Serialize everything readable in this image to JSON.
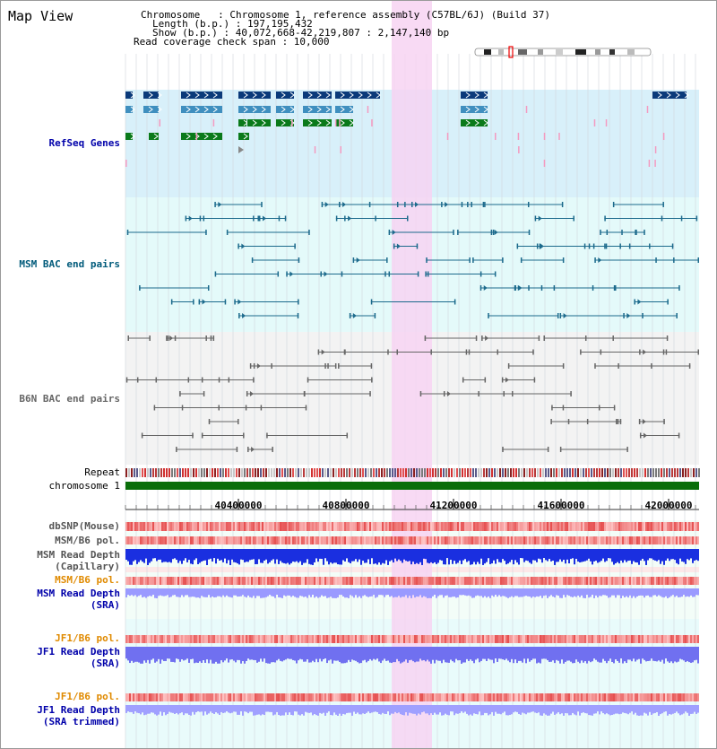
{
  "view": {
    "title": "Map View",
    "info": {
      "chromosome": "Chromosome   : Chromosome 1, reference assembly (C57BL/6J) (Build 37)",
      "length": "Length (b.p.) : 197,195,432",
      "show": "Show (b.p.) : 40,072,668-42,219,807 : 2,147,140 bp",
      "span": "Read coverage check span : 10,000"
    }
  },
  "tracks": {
    "refseq": "RefSeq Genes",
    "msm_bac": "MSM BAC end pairs",
    "b6n_bac": "B6N BAC end pairs",
    "repeat": "Repeat",
    "chromosome": "chromosome 1",
    "dbsnp": "dbSNP(Mouse)",
    "msm_b6_pol": "MSM/B6 pol.",
    "msm_depth_cap": "MSM Read Depth",
    "msm_depth_cap_sub": "(Capillary)",
    "msm_b6_pol2": "MSM/B6 pol.",
    "msm_depth_sra": "MSM Read Depth",
    "msm_depth_sra_sub": "(SRA)",
    "jf1_b6_pol": "JF1/B6 pol.",
    "jf1_depth_sra": "JF1 Read Depth",
    "jf1_depth_sra_sub": "(SRA)",
    "jf1_b6_pol2": "JF1/B6 pol.",
    "jf1_depth_trim": "JF1 Read Depth",
    "jf1_depth_trim_sub": "(SRA trimmed)"
  },
  "ruler": {
    "ticks": [
      "40400000",
      "40800000",
      "41200000",
      "41600000",
      "42000000"
    ]
  },
  "colors": {
    "highlight": "#f7d4f2",
    "refseq_bg": "#d8f0fa",
    "msm_bg": "#e4fafa",
    "b6n_bg": "#f3f3f3",
    "chromosome": "#0a6e0a",
    "label_blue": "#0000aa",
    "label_teal": "#005a7a",
    "label_orange": "#e08a00"
  }
}
